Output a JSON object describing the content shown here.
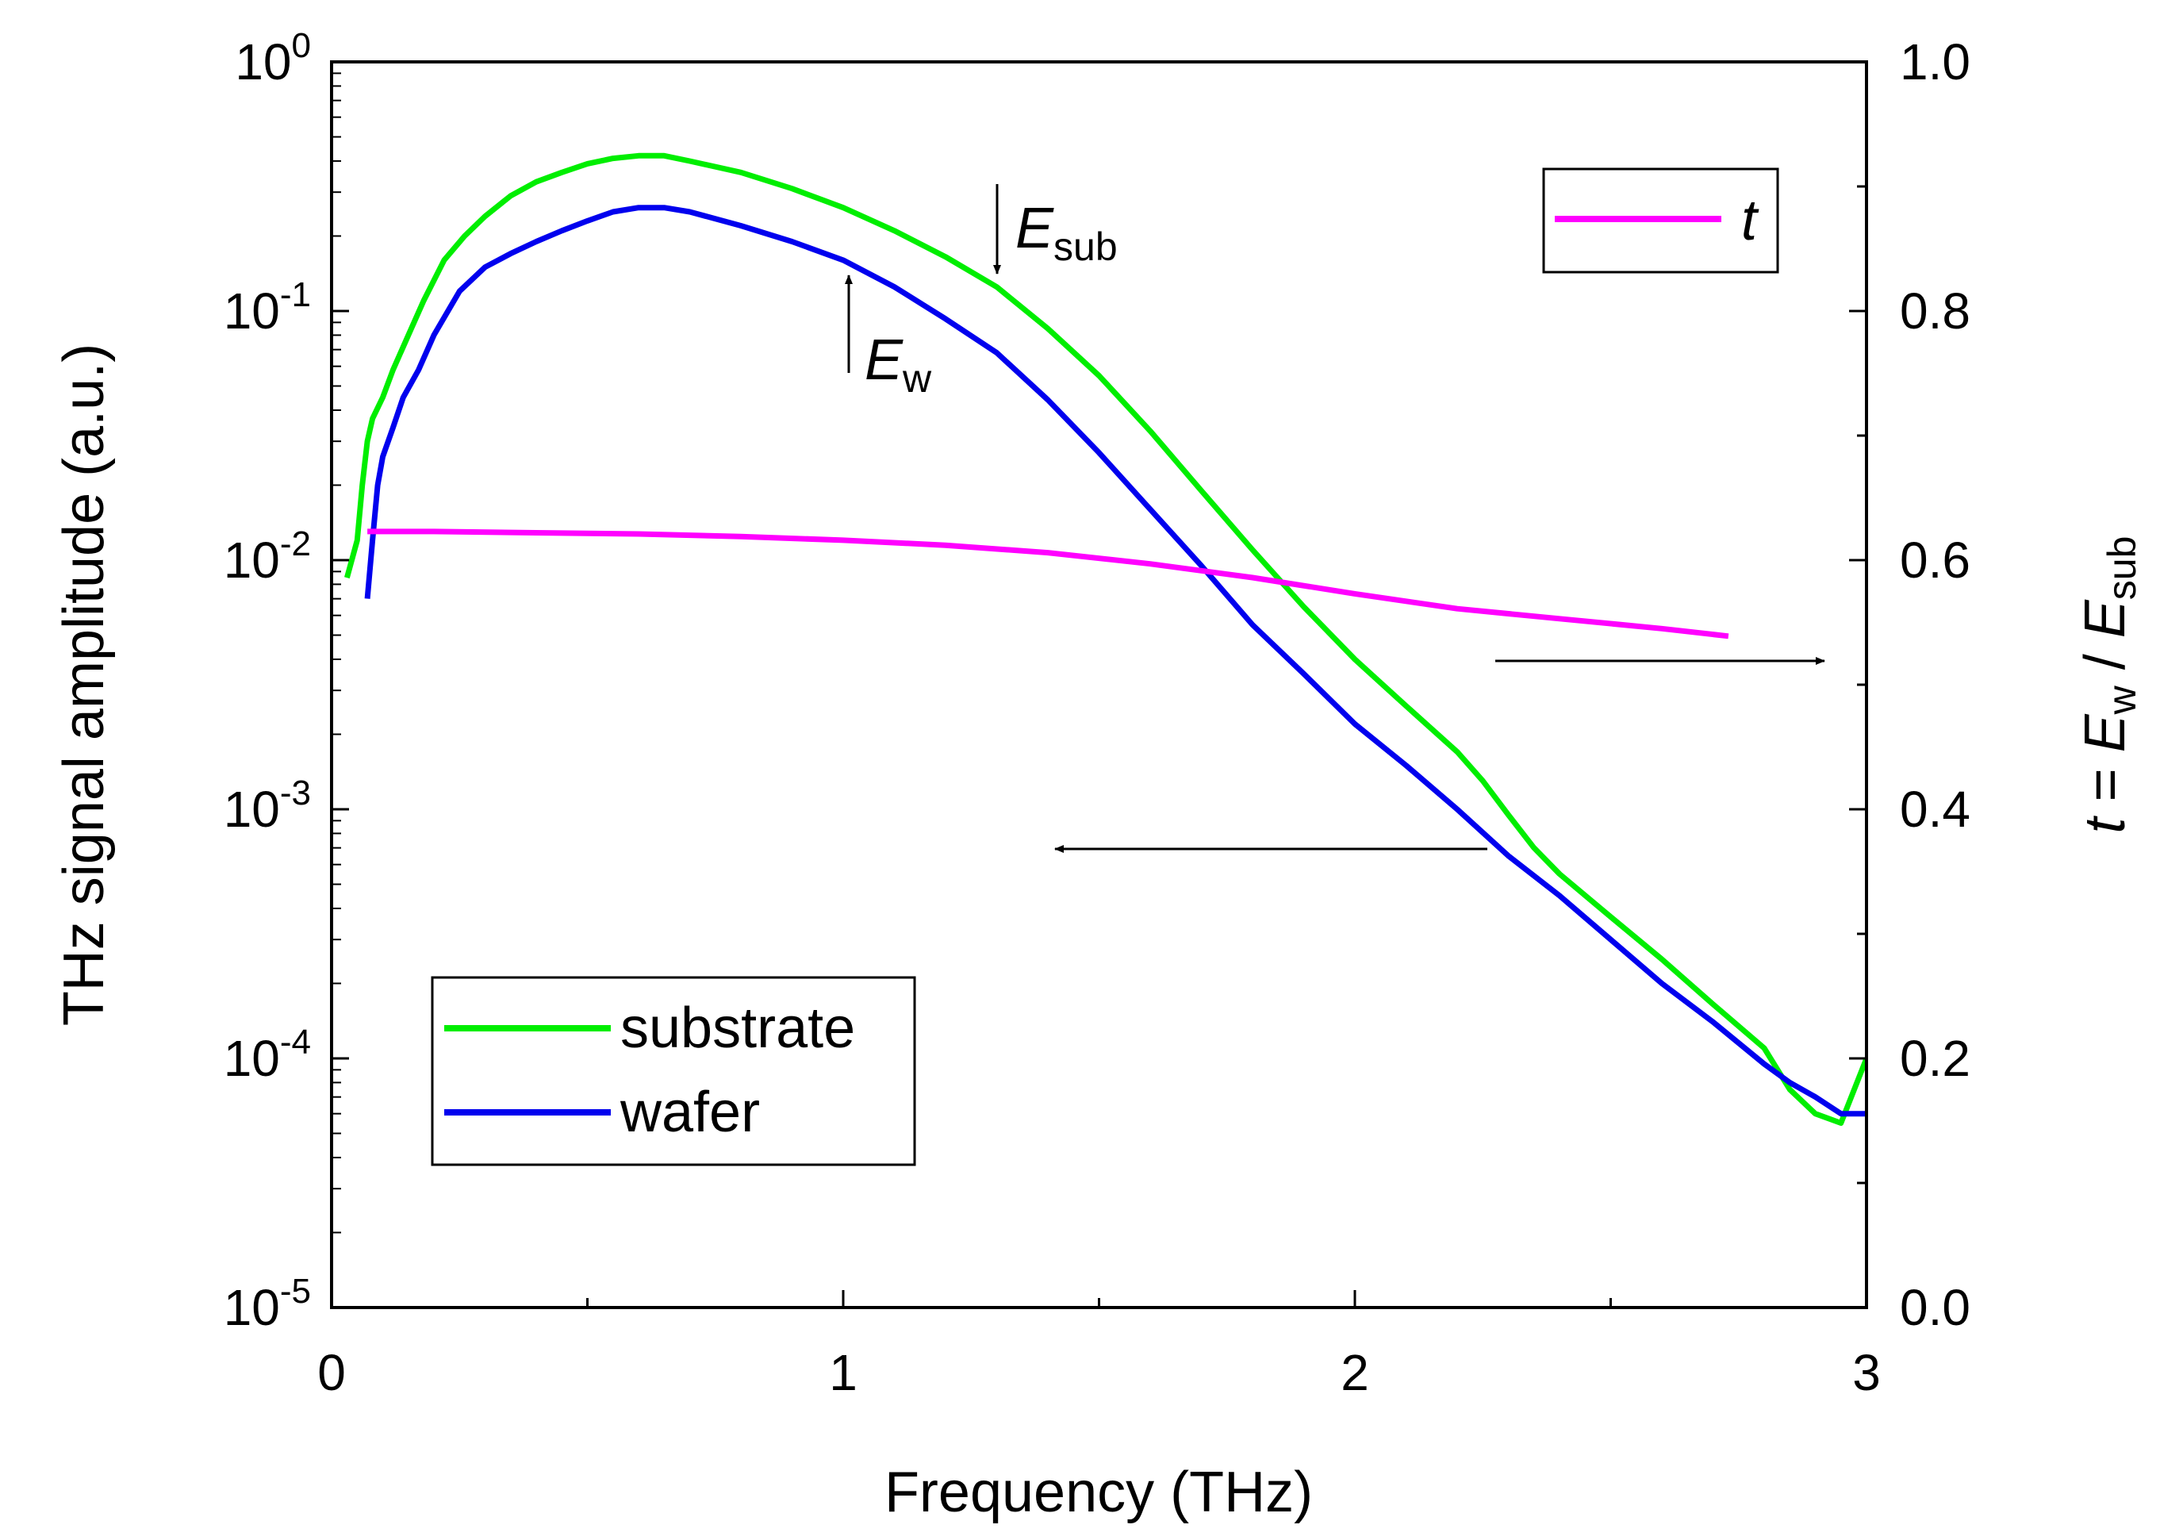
{
  "chart_data": {
    "type": "line",
    "x_axis": {
      "label": "Frequency (THz)",
      "range": [
        0,
        3
      ],
      "ticks": [
        0,
        1,
        2,
        3
      ],
      "tick_labels": [
        "0",
        "1",
        "2",
        "3"
      ]
    },
    "y_axis_left": {
      "label": "THz signal amplitude (a.u.)",
      "scale": "log",
      "range": [
        1e-05,
        1
      ],
      "ticks": [
        {
          "value": 1e-05,
          "base": "10",
          "exp": "-5"
        },
        {
          "value": 0.0001,
          "base": "10",
          "exp": "-4"
        },
        {
          "value": 0.001,
          "base": "10",
          "exp": "-3"
        },
        {
          "value": 0.01,
          "base": "10",
          "exp": "-2"
        },
        {
          "value": 0.1,
          "base": "10",
          "exp": "-1"
        },
        {
          "value": 1,
          "base": "10",
          "exp": "0"
        }
      ]
    },
    "y_axis_right": {
      "label_parts": {
        "t": "t",
        "eq": " = ",
        "E1": "E",
        "sub1": "w",
        "slash": " / ",
        "E2": "E",
        "sub2": "sub"
      },
      "scale": "linear",
      "range": [
        0.0,
        1.0
      ],
      "ticks": [
        0.0,
        0.2,
        0.4,
        0.6,
        0.8,
        1.0
      ],
      "tick_labels": [
        "0.0",
        "0.2",
        "0.4",
        "0.6",
        "0.8",
        "1.0"
      ]
    },
    "series": [
      {
        "name": "substrate",
        "axis": "left",
        "color": "#00ee00",
        "x": [
          0.03,
          0.05,
          0.06,
          0.07,
          0.08,
          0.1,
          0.12,
          0.15,
          0.18,
          0.22,
          0.26,
          0.3,
          0.35,
          0.4,
          0.45,
          0.5,
          0.55,
          0.6,
          0.65,
          0.7,
          0.8,
          0.9,
          1.0,
          1.1,
          1.2,
          1.3,
          1.4,
          1.5,
          1.6,
          1.7,
          1.8,
          1.9,
          2.0,
          2.1,
          2.2,
          2.25,
          2.3,
          2.35,
          2.4,
          2.5,
          2.6,
          2.7,
          2.8,
          2.85,
          2.9,
          2.95,
          3.0
        ],
        "y": [
          0.0085,
          0.012,
          0.02,
          0.03,
          0.037,
          0.045,
          0.058,
          0.08,
          0.11,
          0.16,
          0.2,
          0.24,
          0.29,
          0.33,
          0.36,
          0.39,
          0.41,
          0.42,
          0.42,
          0.4,
          0.36,
          0.31,
          0.26,
          0.21,
          0.165,
          0.125,
          0.085,
          0.055,
          0.033,
          0.019,
          0.011,
          0.0065,
          0.004,
          0.0026,
          0.0017,
          0.0013,
          0.00095,
          0.0007,
          0.00055,
          0.00037,
          0.00025,
          0.000165,
          0.00011,
          7.5e-05,
          6e-05,
          5.5e-05,
          0.0001
        ]
      },
      {
        "name": "wafer",
        "axis": "left",
        "color": "#0000ee",
        "x": [
          0.07,
          0.08,
          0.09,
          0.1,
          0.12,
          0.14,
          0.17,
          0.2,
          0.25,
          0.3,
          0.35,
          0.4,
          0.45,
          0.5,
          0.55,
          0.6,
          0.65,
          0.7,
          0.8,
          0.9,
          1.0,
          1.1,
          1.2,
          1.3,
          1.4,
          1.5,
          1.6,
          1.7,
          1.8,
          1.9,
          2.0,
          2.1,
          2.2,
          2.3,
          2.4,
          2.5,
          2.6,
          2.7,
          2.8,
          2.85,
          2.9,
          2.95,
          3.0
        ],
        "y": [
          0.007,
          0.012,
          0.02,
          0.026,
          0.034,
          0.045,
          0.058,
          0.08,
          0.12,
          0.15,
          0.17,
          0.19,
          0.21,
          0.23,
          0.25,
          0.26,
          0.26,
          0.25,
          0.22,
          0.19,
          0.16,
          0.125,
          0.093,
          0.068,
          0.044,
          0.027,
          0.016,
          0.0095,
          0.0055,
          0.0035,
          0.0022,
          0.0015,
          0.001,
          0.00065,
          0.00045,
          0.0003,
          0.0002,
          0.00014,
          9.5e-05,
          8e-05,
          7e-05,
          6e-05,
          6e-05
        ]
      },
      {
        "name": "t",
        "axis": "right",
        "color": "#ff00ff",
        "x": [
          0.07,
          0.2,
          0.4,
          0.6,
          0.8,
          1.0,
          1.2,
          1.4,
          1.6,
          1.8,
          2.0,
          2.2,
          2.4,
          2.6,
          2.73
        ],
        "y": [
          0.623,
          0.623,
          0.622,
          0.621,
          0.619,
          0.616,
          0.612,
          0.606,
          0.597,
          0.586,
          0.573,
          0.561,
          0.553,
          0.545,
          0.539
        ]
      }
    ],
    "legends": {
      "left": [
        {
          "label": "substrate",
          "color": "#00ee00"
        },
        {
          "label": "wafer",
          "color": "#0000ee"
        }
      ],
      "right": [
        {
          "label": "t",
          "color": "#ff00ff"
        }
      ]
    },
    "annotations": {
      "E_sub": {
        "E": "E",
        "sub": "sub"
      },
      "E_w": {
        "E": "E",
        "sub": "w"
      },
      "arrow_to_right_axis": "points to right axis",
      "arrow_to_left_axis": "points to left axis"
    }
  }
}
